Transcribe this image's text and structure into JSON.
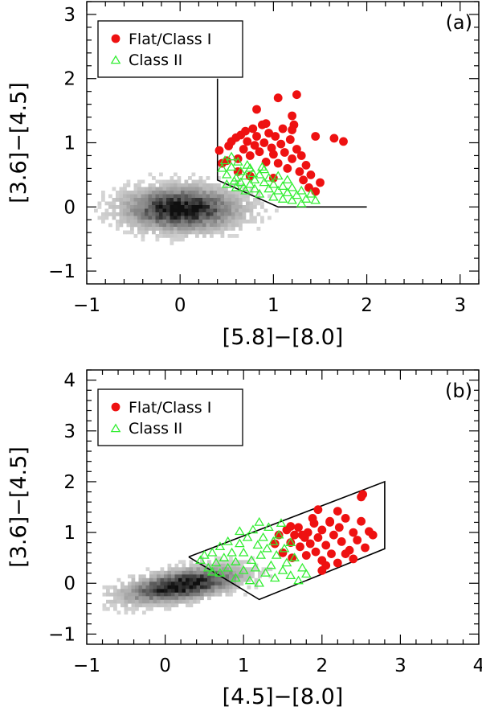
{
  "chart_data": [
    {
      "type": "scatter",
      "panel_label": "(a)",
      "xlabel": "[5.8]−[8.0]",
      "ylabel": "[3.6]−[4.5]",
      "xlim": [
        -1,
        3.2
      ],
      "ylim": [
        -1.2,
        3.2
      ],
      "xticks": [
        -1,
        0,
        1,
        2,
        3
      ],
      "xtick_labels": [
        "−1",
        "0",
        "1",
        "2",
        "3"
      ],
      "yticks": [
        -1,
        0,
        1,
        2,
        3
      ],
      "ytick_labels": [
        "−1",
        "0",
        "1",
        "2",
        "3"
      ],
      "legend": {
        "position": "top-left",
        "entries": [
          "Flat/Class I",
          "Class II"
        ]
      },
      "boundary_polyline": [
        [
          0.4,
          2.0
        ],
        [
          0.4,
          0.42
        ],
        [
          1.05,
          0.0
        ],
        [
          2.0,
          0.0
        ]
      ],
      "background_density": {
        "center": [
          0.0,
          0.0
        ],
        "spread": [
          0.45,
          0.25
        ],
        "extent": [
          [
            -1.0,
            1.5
          ],
          [
            -0.8,
            1.1
          ]
        ],
        "tilt": 0
      },
      "series": [
        {
          "name": "Flat/Class I",
          "color": "#ee1111",
          "marker": "filled-circle",
          "points": [
            [
              0.42,
              0.88
            ],
            [
              0.45,
              0.68
            ],
            [
              0.5,
              0.72
            ],
            [
              0.52,
              0.95
            ],
            [
              0.55,
              1.02
            ],
            [
              0.6,
              1.08
            ],
            [
              0.62,
              0.75
            ],
            [
              0.65,
              1.12
            ],
            [
              0.68,
              0.9
            ],
            [
              0.7,
              1.18
            ],
            [
              0.72,
              1.02
            ],
            [
              0.75,
              0.8
            ],
            [
              0.78,
              1.22
            ],
            [
              0.8,
              0.96
            ],
            [
              0.82,
              1.1
            ],
            [
              0.85,
              0.86
            ],
            [
              0.88,
              1.28
            ],
            [
              0.9,
              1.0
            ],
            [
              0.92,
              0.7
            ],
            [
              0.95,
              1.15
            ],
            [
              0.98,
              0.92
            ],
            [
              1.0,
              0.82
            ],
            [
              1.02,
              1.1
            ],
            [
              1.05,
              0.68
            ],
            [
              1.08,
              0.98
            ],
            [
              1.1,
              1.22
            ],
            [
              1.12,
              0.85
            ],
            [
              1.15,
              0.6
            ],
            [
              1.18,
              1.05
            ],
            [
              1.2,
              0.75
            ],
            [
              1.22,
              1.28
            ],
            [
              1.25,
              0.9
            ],
            [
              1.28,
              0.55
            ],
            [
              1.3,
              0.8
            ],
            [
              1.32,
              0.42
            ],
            [
              1.35,
              0.65
            ],
            [
              1.38,
              0.3
            ],
            [
              1.4,
              0.5
            ],
            [
              1.45,
              0.24
            ],
            [
              1.5,
              0.38
            ],
            [
              0.82,
              1.52
            ],
            [
              1.05,
              1.7
            ],
            [
              1.25,
              1.75
            ],
            [
              1.2,
              1.42
            ],
            [
              1.45,
              1.1
            ],
            [
              1.65,
              1.07
            ],
            [
              1.75,
              1.02
            ],
            [
              0.75,
              0.48
            ],
            [
              0.62,
              0.55
            ],
            [
              1.0,
              0.45
            ],
            [
              1.2,
              1.2
            ],
            [
              0.92,
              1.3
            ]
          ]
        },
        {
          "name": "Class II",
          "color": "#33ee33",
          "marker": "open-triangle",
          "points": [
            [
              0.45,
              0.6
            ],
            [
              0.5,
              0.5
            ],
            [
              0.5,
              0.35
            ],
            [
              0.55,
              0.62
            ],
            [
              0.6,
              0.45
            ],
            [
              0.6,
              0.3
            ],
            [
              0.65,
              0.55
            ],
            [
              0.65,
              0.38
            ],
            [
              0.7,
              0.25
            ],
            [
              0.7,
              0.48
            ],
            [
              0.75,
              0.35
            ],
            [
              0.75,
              0.6
            ],
            [
              0.8,
              0.42
            ],
            [
              0.8,
              0.28
            ],
            [
              0.85,
              0.5
            ],
            [
              0.85,
              0.2
            ],
            [
              0.9,
              0.38
            ],
            [
              0.9,
              0.58
            ],
            [
              0.95,
              0.28
            ],
            [
              0.95,
              0.45
            ],
            [
              1.0,
              0.15
            ],
            [
              1.0,
              0.35
            ],
            [
              1.05,
              0.25
            ],
            [
              1.05,
              0.48
            ],
            [
              1.1,
              0.12
            ],
            [
              1.1,
              0.32
            ],
            [
              1.15,
              0.22
            ],
            [
              1.15,
              0.42
            ],
            [
              1.2,
              0.1
            ],
            [
              1.2,
              0.3
            ],
            [
              1.25,
              0.18
            ],
            [
              1.3,
              0.05
            ],
            [
              1.3,
              0.25
            ],
            [
              1.35,
              0.12
            ],
            [
              1.4,
              0.2
            ],
            [
              1.45,
              0.1
            ],
            [
              0.55,
              0.78
            ],
            [
              0.48,
              0.72
            ],
            [
              0.62,
              0.7
            ],
            [
              0.72,
              0.65
            ],
            [
              0.58,
              0.4
            ],
            [
              0.68,
              0.3
            ],
            [
              0.78,
              0.52
            ],
            [
              0.88,
              0.62
            ]
          ]
        }
      ]
    },
    {
      "type": "scatter",
      "panel_label": "(b)",
      "xlabel": "[4.5]−[8.0]",
      "ylabel": "[3.6]−[4.5]",
      "xlim": [
        -1,
        4
      ],
      "ylim": [
        -1.2,
        4.2
      ],
      "xticks": [
        -1,
        0,
        1,
        2,
        3,
        4
      ],
      "xtick_labels": [
        "−1",
        "0",
        "1",
        "2",
        "3",
        "4"
      ],
      "yticks": [
        -1,
        0,
        1,
        2,
        3,
        4
      ],
      "ytick_labels": [
        "−1",
        "0",
        "1",
        "2",
        "3",
        "4"
      ],
      "legend": {
        "position": "top-left",
        "entries": [
          "Flat/Class I",
          "Class II"
        ]
      },
      "boundary_polyline": [
        [
          0.3,
          0.52
        ],
        [
          1.2,
          -0.32
        ],
        [
          2.8,
          0.68
        ],
        [
          2.8,
          2.0
        ],
        [
          0.3,
          0.52
        ]
      ],
      "background_density": {
        "center": [
          0.2,
          0.0
        ],
        "spread": [
          0.55,
          0.22
        ],
        "extent": [
          [
            -0.8,
            2.2
          ],
          [
            -0.8,
            1.1
          ]
        ],
        "tilt": 0.25
      },
      "series": [
        {
          "name": "Flat/Class I",
          "color": "#ee1111",
          "marker": "filled-circle",
          "points": [
            [
              1.4,
              0.78
            ],
            [
              1.45,
              0.95
            ],
            [
              1.5,
              0.6
            ],
            [
              1.55,
              1.05
            ],
            [
              1.6,
              0.8
            ],
            [
              1.62,
              0.5
            ],
            [
              1.65,
              0.95
            ],
            [
              1.7,
              1.1
            ],
            [
              1.72,
              0.72
            ],
            [
              1.78,
              0.9
            ],
            [
              1.8,
              0.55
            ],
            [
              1.82,
              1.0
            ],
            [
              1.85,
              0.78
            ],
            [
              1.9,
              1.18
            ],
            [
              1.92,
              0.62
            ],
            [
              1.95,
              0.9
            ],
            [
              2.0,
              0.45
            ],
            [
              2.0,
              1.05
            ],
            [
              2.05,
              0.75
            ],
            [
              2.1,
              1.2
            ],
            [
              2.12,
              0.58
            ],
            [
              2.15,
              0.95
            ],
            [
              2.2,
              0.4
            ],
            [
              2.22,
              1.1
            ],
            [
              2.25,
              0.82
            ],
            [
              2.3,
              1.28
            ],
            [
              2.35,
              0.65
            ],
            [
              2.4,
              1.0
            ],
            [
              2.45,
              0.85
            ],
            [
              2.5,
              1.22
            ],
            [
              2.55,
              0.7
            ],
            [
              2.6,
              1.02
            ],
            [
              2.65,
              0.95
            ],
            [
              2.4,
              0.48
            ],
            [
              2.2,
              1.42
            ],
            [
              2.1,
              1.22
            ],
            [
              2.0,
              0.25
            ],
            [
              2.05,
              0.35
            ],
            [
              1.95,
              1.45
            ],
            [
              2.5,
              1.7
            ],
            [
              2.52,
              1.75
            ],
            [
              2.3,
              0.58
            ],
            [
              1.75,
              0.95
            ],
            [
              1.6,
              1.12
            ],
            [
              1.88,
              1.28
            ]
          ]
        },
        {
          "name": "Class II",
          "color": "#33ee33",
          "marker": "open-triangle",
          "points": [
            [
              0.45,
              0.45
            ],
            [
              0.5,
              0.55
            ],
            [
              0.55,
              0.3
            ],
            [
              0.6,
              0.6
            ],
            [
              0.65,
              0.4
            ],
            [
              0.7,
              0.2
            ],
            [
              0.7,
              0.72
            ],
            [
              0.75,
              0.5
            ],
            [
              0.8,
              0.3
            ],
            [
              0.8,
              0.82
            ],
            [
              0.85,
              0.6
            ],
            [
              0.9,
              0.1
            ],
            [
              0.9,
              0.42
            ],
            [
              0.95,
              0.78
            ],
            [
              1.0,
              0.25
            ],
            [
              1.0,
              0.6
            ],
            [
              1.05,
              0.9
            ],
            [
              1.08,
              0.05
            ],
            [
              1.1,
              0.45
            ],
            [
              1.12,
              1.05
            ],
            [
              1.15,
              0.3
            ],
            [
              1.18,
              0.75
            ],
            [
              1.2,
              0.0
            ],
            [
              1.22,
              0.55
            ],
            [
              1.25,
              0.9
            ],
            [
              1.28,
              0.2
            ],
            [
              1.3,
              0.68
            ],
            [
              1.32,
              1.1
            ],
            [
              1.35,
              0.35
            ],
            [
              1.38,
              0.82
            ],
            [
              1.4,
              0.1
            ],
            [
              1.42,
              0.55
            ],
            [
              1.45,
              0.95
            ],
            [
              1.5,
              0.25
            ],
            [
              1.52,
              0.68
            ],
            [
              1.55,
              0.4
            ],
            [
              1.6,
              0.15
            ],
            [
              1.65,
              0.5
            ],
            [
              1.7,
              0.05
            ],
            [
              1.75,
              0.3
            ],
            [
              1.8,
              0.18
            ],
            [
              1.6,
              0.8
            ],
            [
              1.48,
              1.18
            ],
            [
              1.2,
              1.2
            ],
            [
              0.6,
              0.22
            ],
            [
              0.95,
              1.02
            ]
          ]
        }
      ]
    }
  ]
}
